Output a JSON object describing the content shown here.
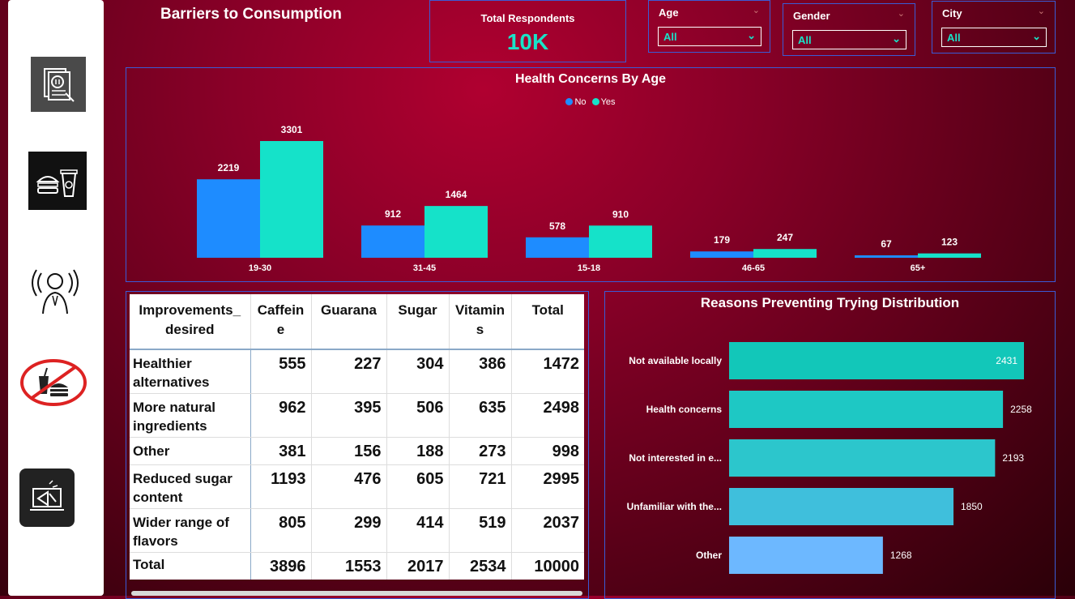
{
  "title": "Barriers to Consumption",
  "kpi": {
    "label": "Total Respondents",
    "value": "10K"
  },
  "slicers": [
    {
      "label": "Age",
      "value": "All"
    },
    {
      "label": "Gender",
      "value": "All"
    },
    {
      "label": "City",
      "value": "All"
    }
  ],
  "nav": [
    {
      "name": "nav-report-icon"
    },
    {
      "name": "nav-food-drink-icon"
    },
    {
      "name": "nav-person-broadcast-icon"
    },
    {
      "name": "nav-no-fastfood-icon"
    },
    {
      "name": "nav-marketing-icon"
    }
  ],
  "chart_data": [
    {
      "type": "bar",
      "title": "Health Concerns By Age",
      "categories": [
        "19-30",
        "31-45",
        "15-18",
        "46-65",
        "65+"
      ],
      "series": [
        {
          "name": "No",
          "values": [
            2219,
            912,
            578,
            179,
            67
          ],
          "color": "#1e8cff"
        },
        {
          "name": "Yes",
          "values": [
            3301,
            1464,
            910,
            247,
            123
          ],
          "color": "#15e2c9"
        }
      ],
      "legend": "top-center",
      "grid": false
    },
    {
      "type": "bar",
      "orientation": "horizontal",
      "title": "Reasons Preventing Trying Distribution",
      "categories": [
        "Not available locally",
        "Health concerns",
        "Not interested in e...",
        "Unfamiliar with the...",
        "Other"
      ],
      "values": [
        2431,
        2258,
        2193,
        1850,
        1268
      ],
      "colors": [
        "#12c7b9",
        "#1ec8c4",
        "#2cc6cc",
        "#3fbfdc",
        "#6db8ff"
      ],
      "grid": false
    }
  ],
  "matrix": {
    "headers": [
      "Improvements_ desired",
      "Caffeine",
      "Guarana",
      "Sugar",
      "Vitamins",
      "Total"
    ],
    "rows": [
      {
        "label": "Healthier alternatives",
        "values": [
          "555",
          "227",
          "304",
          "386",
          "1472"
        ]
      },
      {
        "label": "More natural ingredients",
        "values": [
          "962",
          "395",
          "506",
          "635",
          "2498"
        ]
      },
      {
        "label": "Other",
        "values": [
          "381",
          "156",
          "188",
          "273",
          "998"
        ]
      },
      {
        "label": "Reduced sugar content",
        "values": [
          "1193",
          "476",
          "605",
          "721",
          "2995"
        ]
      },
      {
        "label": "Wider range of flavors",
        "values": [
          "805",
          "299",
          "414",
          "519",
          "2037"
        ]
      }
    ],
    "total": {
      "label": "Total",
      "values": [
        "3896",
        "1553",
        "2017",
        "2534",
        "10000"
      ]
    }
  }
}
